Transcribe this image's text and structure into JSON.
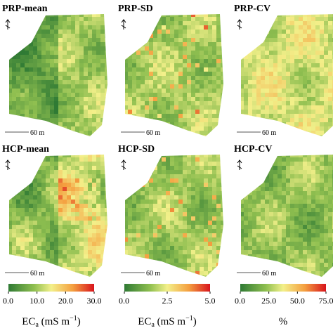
{
  "panels": [
    {
      "title": "PRP-mean",
      "scale_label": "60 m"
    },
    {
      "title": "PRP-SD",
      "scale_label": "60 m"
    },
    {
      "title": "PRP-CV",
      "scale_label": "60 m"
    },
    {
      "title": "HCP-mean",
      "scale_label": "60 m"
    },
    {
      "title": "HCP-SD",
      "scale_label": "60 m"
    },
    {
      "title": "HCP-CV",
      "scale_label": "60 m"
    }
  ],
  "colorbars": [
    {
      "lim": [
        0,
        30
      ],
      "ticks": [
        {
          "value": 0,
          "label": "0.0"
        },
        {
          "value": 10,
          "label": "10.0"
        },
        {
          "value": 20,
          "label": "20.0"
        },
        {
          "value": 30,
          "label": "30.0"
        }
      ],
      "label": {
        "text": "EC",
        "sub": "a",
        "rest": " (mS m",
        "sup": "−1",
        "end": ")"
      }
    },
    {
      "lim": [
        0,
        5
      ],
      "ticks": [
        {
          "value": 0,
          "label": "0.0"
        },
        {
          "value": 2.5,
          "label": "2.5"
        },
        {
          "value": 5,
          "label": "5.0"
        }
      ],
      "label": {
        "text": "EC",
        "sub": "a",
        "rest": " (mS m",
        "sup": "−1",
        "end": ")"
      }
    },
    {
      "lim": [
        0,
        75
      ],
      "ticks": [
        {
          "value": 0,
          "label": "0.0"
        },
        {
          "value": 25,
          "label": "25.0"
        },
        {
          "value": 50,
          "label": "50.0"
        },
        {
          "value": 75,
          "label": "75.0"
        }
      ],
      "label": {
        "text": "%"
      }
    }
  ]
}
